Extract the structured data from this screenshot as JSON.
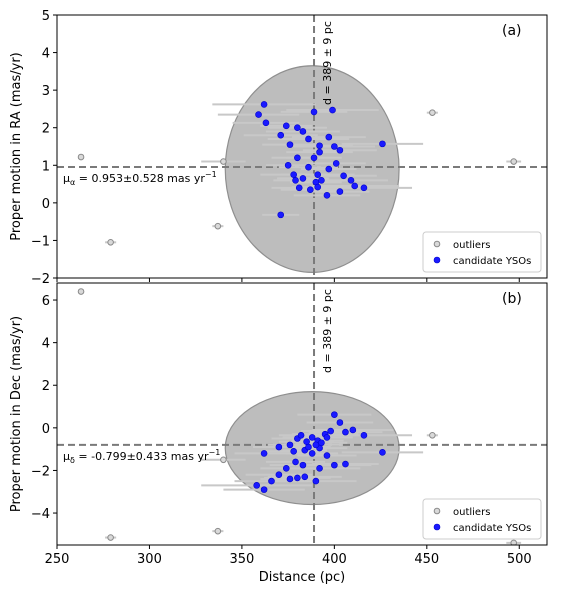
{
  "chart_data": [
    {
      "type": "scatter",
      "panel_label": "(a)",
      "ylabel": "Proper motion in RA (mas/yr)",
      "xlim": [
        250,
        515
      ],
      "ylim": [
        -2,
        5
      ],
      "yticks": [
        -2,
        -1,
        0,
        1,
        2,
        3,
        4,
        5
      ],
      "ref_distance": 389,
      "ref_distance_label": "d = 389 ± 9 pc",
      "ref_pm": 0.953,
      "annotation_prefix": "μ",
      "annotation_sub": "α",
      "annotation_rest": " = 0.953±0.528 mas yr",
      "annotation_sup": "−1",
      "ellipse": {
        "center": [
          388,
          0.9
        ],
        "half_width": 47,
        "half_height": 2.75
      },
      "legend_position": "lower-right",
      "series": [
        {
          "name": "outliers",
          "color": "#aaaaaa",
          "marker": "diamond",
          "points": [
            {
              "x": 263,
              "y": 1.22,
              "xerr": 0
            },
            {
              "x": 279,
              "y": -1.05,
              "xerr": 3
            },
            {
              "x": 337,
              "y": -0.62,
              "xerr": 3
            },
            {
              "x": 340,
              "y": 1.1,
              "xerr": 12
            },
            {
              "x": 453,
              "y": 2.4,
              "xerr": 3
            },
            {
              "x": 497,
              "y": 1.1,
              "xerr": 4
            }
          ]
        },
        {
          "name": "candidate YSOs",
          "color": "#1a1aff",
          "marker": "circle",
          "points": [
            {
              "x": 362,
              "y": 2.62,
              "xerr": 28
            },
            {
              "x": 359,
              "y": 2.35,
              "xerr": 22
            },
            {
              "x": 363,
              "y": 2.13,
              "xerr": 18
            },
            {
              "x": 371,
              "y": 1.8,
              "xerr": 20
            },
            {
              "x": 376,
              "y": 1.55,
              "xerr": 15
            },
            {
              "x": 374,
              "y": 2.05,
              "xerr": 14
            },
            {
              "x": 380,
              "y": 2.0,
              "xerr": 16
            },
            {
              "x": 383,
              "y": 1.9,
              "xerr": 20
            },
            {
              "x": 386,
              "y": 1.7,
              "xerr": 22
            },
            {
              "x": 389,
              "y": 2.42,
              "xerr": 18
            },
            {
              "x": 399,
              "y": 2.47,
              "xerr": 25
            },
            {
              "x": 397,
              "y": 1.75,
              "xerr": 20
            },
            {
              "x": 392,
              "y": 1.52,
              "xerr": 18
            },
            {
              "x": 400,
              "y": 1.5,
              "xerr": 22
            },
            {
              "x": 403,
              "y": 1.4,
              "xerr": 20
            },
            {
              "x": 426,
              "y": 1.57,
              "xerr": 22
            },
            {
              "x": 389,
              "y": 1.2,
              "xerr": 15
            },
            {
              "x": 392,
              "y": 1.35,
              "xerr": 18
            },
            {
              "x": 380,
              "y": 1.2,
              "xerr": 14
            },
            {
              "x": 375,
              "y": 1.0,
              "xerr": 12
            },
            {
              "x": 378,
              "y": 0.75,
              "xerr": 18
            },
            {
              "x": 386,
              "y": 0.95,
              "xerr": 16
            },
            {
              "x": 391,
              "y": 0.75,
              "xerr": 20
            },
            {
              "x": 390,
              "y": 0.55,
              "xerr": 14
            },
            {
              "x": 393,
              "y": 0.6,
              "xerr": 12
            },
            {
              "x": 397,
              "y": 0.9,
              "xerr": 15
            },
            {
              "x": 401,
              "y": 1.05,
              "xerr": 16
            },
            {
              "x": 405,
              "y": 0.72,
              "xerr": 18
            },
            {
              "x": 409,
              "y": 0.6,
              "xerr": 20
            },
            {
              "x": 411,
              "y": 0.45,
              "xerr": 24
            },
            {
              "x": 416,
              "y": 0.4,
              "xerr": 26
            },
            {
              "x": 403,
              "y": 0.3,
              "xerr": 16
            },
            {
              "x": 396,
              "y": 0.2,
              "xerr": 18
            },
            {
              "x": 391,
              "y": 0.42,
              "xerr": 14
            },
            {
              "x": 387,
              "y": 0.35,
              "xerr": 16
            },
            {
              "x": 381,
              "y": 0.4,
              "xerr": 15
            },
            {
              "x": 379,
              "y": 0.6,
              "xerr": 12
            },
            {
              "x": 383,
              "y": 0.65,
              "xerr": 14
            },
            {
              "x": 371,
              "y": -0.32,
              "xerr": 10
            }
          ]
        }
      ]
    },
    {
      "type": "scatter",
      "panel_label": "(b)",
      "ylabel": "Proper motion in Dec (mas/yr)",
      "xlabel": "Distance (pc)",
      "xlim": [
        250,
        515
      ],
      "ylim": [
        -5.5,
        6.8
      ],
      "yticks": [
        -4,
        -2,
        0,
        2,
        4,
        6
      ],
      "xticks": [
        250,
        300,
        350,
        400,
        450,
        500
      ],
      "ref_distance": 389,
      "ref_distance_label": "d = 389 ± 9 pc",
      "ref_pm": -0.799,
      "annotation_prefix": "μ",
      "annotation_sub": "δ",
      "annotation_rest": " = -0.799±0.433 mas yr",
      "annotation_sup": "−1",
      "ellipse": {
        "center": [
          388,
          -0.95
        ],
        "half_width": 47,
        "half_height": 2.65
      },
      "legend_position": "lower-right",
      "series": [
        {
          "name": "outliers",
          "color": "#aaaaaa",
          "marker": "diamond",
          "points": [
            {
              "x": 263,
              "y": 6.4,
              "xerr": 0
            },
            {
              "x": 279,
              "y": -5.15,
              "xerr": 3
            },
            {
              "x": 337,
              "y": -4.85,
              "xerr": 3
            },
            {
              "x": 340,
              "y": -1.5,
              "xerr": 12
            },
            {
              "x": 453,
              "y": -0.35,
              "xerr": 3
            },
            {
              "x": 497,
              "y": -5.4,
              "xerr": 4
            }
          ]
        },
        {
          "name": "candidate YSOs",
          "color": "#1a1aff",
          "marker": "circle",
          "points": [
            {
              "x": 358,
              "y": -2.7,
              "xerr": 30
            },
            {
              "x": 362,
              "y": -2.9,
              "xerr": 22
            },
            {
              "x": 366,
              "y": -2.5,
              "xerr": 20
            },
            {
              "x": 370,
              "y": -2.2,
              "xerr": 18
            },
            {
              "x": 376,
              "y": -2.4,
              "xerr": 16
            },
            {
              "x": 380,
              "y": -2.35,
              "xerr": 18
            },
            {
              "x": 384,
              "y": -2.3,
              "xerr": 20
            },
            {
              "x": 390,
              "y": -2.5,
              "xerr": 22
            },
            {
              "x": 374,
              "y": -1.9,
              "xerr": 14
            },
            {
              "x": 379,
              "y": -1.6,
              "xerr": 16
            },
            {
              "x": 383,
              "y": -1.75,
              "xerr": 18
            },
            {
              "x": 392,
              "y": -1.9,
              "xerr": 22
            },
            {
              "x": 400,
              "y": -1.75,
              "xerr": 20
            },
            {
              "x": 406,
              "y": -1.7,
              "xerr": 18
            },
            {
              "x": 362,
              "y": -1.2,
              "xerr": 16
            },
            {
              "x": 370,
              "y": -0.9,
              "xerr": 14
            },
            {
              "x": 376,
              "y": -0.8,
              "xerr": 12
            },
            {
              "x": 380,
              "y": -0.5,
              "xerr": 14
            },
            {
              "x": 385,
              "y": -0.65,
              "xerr": 15
            },
            {
              "x": 388,
              "y": -0.45,
              "xerr": 16
            },
            {
              "x": 391,
              "y": -0.6,
              "xerr": 14
            },
            {
              "x": 395,
              "y": -0.3,
              "xerr": 18
            },
            {
              "x": 398,
              "y": -0.15,
              "xerr": 16
            },
            {
              "x": 400,
              "y": 0.62,
              "xerr": 20
            },
            {
              "x": 403,
              "y": 0.25,
              "xerr": 18
            },
            {
              "x": 406,
              "y": -0.2,
              "xerr": 20
            },
            {
              "x": 410,
              "y": -0.1,
              "xerr": 22
            },
            {
              "x": 416,
              "y": -0.35,
              "xerr": 26
            },
            {
              "x": 426,
              "y": -1.15,
              "xerr": 22
            },
            {
              "x": 392,
              "y": -0.95,
              "xerr": 15
            },
            {
              "x": 388,
              "y": -1.2,
              "xerr": 14
            },
            {
              "x": 384,
              "y": -1.05,
              "xerr": 12
            },
            {
              "x": 396,
              "y": -1.3,
              "xerr": 16
            },
            {
              "x": 390,
              "y": -0.8,
              "xerr": 14
            },
            {
              "x": 386,
              "y": -0.9,
              "xerr": 12
            },
            {
              "x": 393,
              "y": -0.7,
              "xerr": 14
            },
            {
              "x": 382,
              "y": -0.35,
              "xerr": 12
            },
            {
              "x": 396,
              "y": -0.45,
              "xerr": 14
            },
            {
              "x": 378,
              "y": -1.1,
              "xerr": 15
            }
          ]
        }
      ]
    }
  ]
}
